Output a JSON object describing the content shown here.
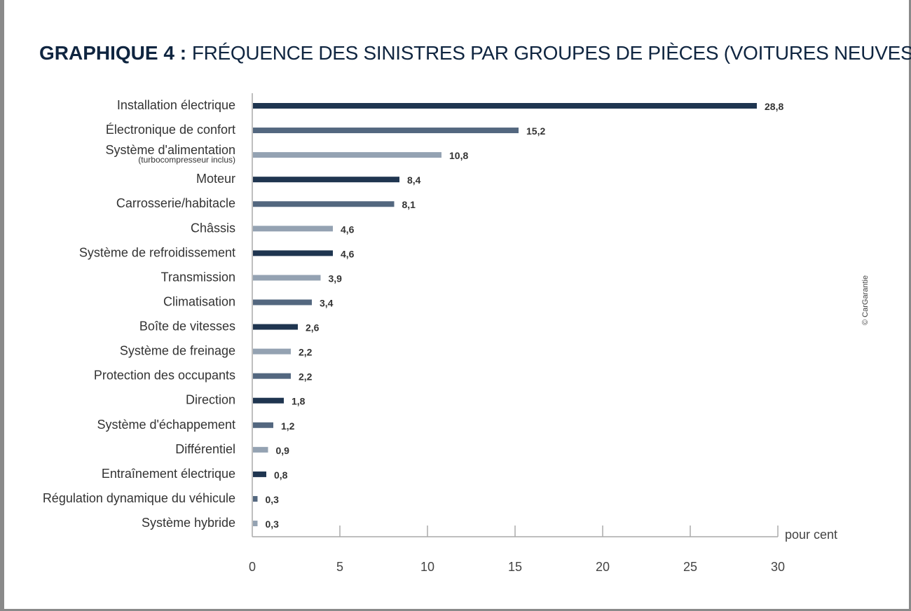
{
  "chart_data": {
    "type": "bar",
    "orientation": "horizontal",
    "title_bold": "GRAPHIQUE 4 :",
    "title": "FRÉQUENCE DES SINISTRES PAR GROUPES DE PIÈCES (VOITURES NEUVES)",
    "xlabel": "pour cent",
    "xlim": [
      0,
      30
    ],
    "xticks": [
      0,
      5,
      10,
      15,
      20,
      25,
      30
    ],
    "grid": false,
    "categories": [
      {
        "label": "Installation électrique",
        "sub": ""
      },
      {
        "label": "Électronique de confort",
        "sub": ""
      },
      {
        "label": "Système d'alimentation",
        "sub": "(turbocompresseur inclus)"
      },
      {
        "label": "Moteur",
        "sub": ""
      },
      {
        "label": "Carrosserie/habitacle",
        "sub": ""
      },
      {
        "label": "Châssis",
        "sub": ""
      },
      {
        "label": "Système de refroidissement",
        "sub": ""
      },
      {
        "label": "Transmission",
        "sub": ""
      },
      {
        "label": "Climatisation",
        "sub": ""
      },
      {
        "label": "Boîte de vitesses",
        "sub": ""
      },
      {
        "label": "Système de freinage",
        "sub": ""
      },
      {
        "label": "Protection des occupants",
        "sub": ""
      },
      {
        "label": "Direction",
        "sub": ""
      },
      {
        "label": "Système d'échappement",
        "sub": ""
      },
      {
        "label": "Différentiel",
        "sub": ""
      },
      {
        "label": "Entraînement électrique",
        "sub": ""
      },
      {
        "label": "Régulation dynamique du véhicule",
        "sub": ""
      },
      {
        "label": "Système hybride",
        "sub": ""
      }
    ],
    "values": [
      28.8,
      15.2,
      10.8,
      8.4,
      8.1,
      4.6,
      4.6,
      3.9,
      3.4,
      2.6,
      2.2,
      2.2,
      1.8,
      1.2,
      0.9,
      0.8,
      0.3,
      0.3
    ],
    "value_labels": [
      "28,8",
      "15,2",
      "10,8",
      "8,4",
      "8,1",
      "4,6",
      "4,6",
      "3,9",
      "3,4",
      "2,6",
      "2,2",
      "2,2",
      "1,8",
      "1,2",
      "0,9",
      "0,8",
      "0,3",
      "0,3"
    ],
    "bar_colors": [
      "dark",
      "mid",
      "light",
      "dark",
      "mid",
      "light",
      "dark",
      "light",
      "mid",
      "dark",
      "light",
      "mid",
      "dark",
      "mid",
      "light",
      "dark",
      "mid",
      "light"
    ],
    "palette": {
      "dark": "#1f3550",
      "mid": "#53677f",
      "light": "#94a2b2"
    },
    "credit": "© CarGarantie"
  }
}
